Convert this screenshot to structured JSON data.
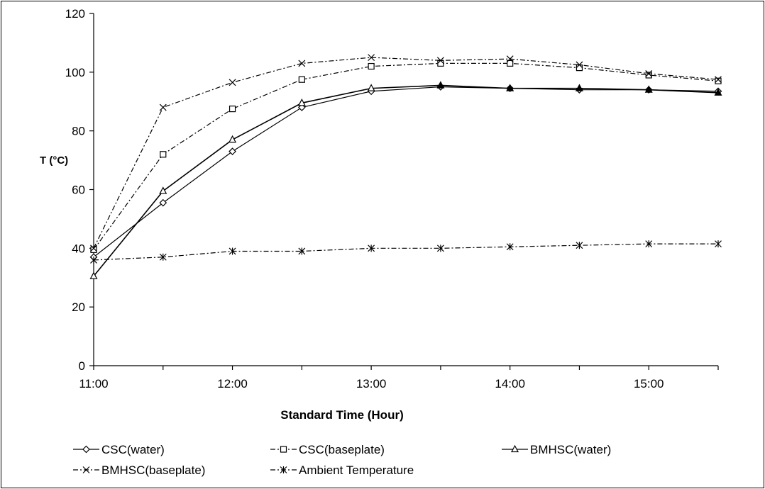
{
  "chart_data": {
    "type": "line",
    "xlabel": "Standard Time (Hour)",
    "ylabel": "T (°C)",
    "ylim": [
      0,
      120
    ],
    "yticks": [
      0,
      20,
      40,
      60,
      80,
      100,
      120
    ],
    "xlim": [
      "11:00",
      "15:30"
    ],
    "xtick_labels": [
      "11:00",
      "12:00",
      "13:00",
      "14:00",
      "15:00"
    ],
    "x": [
      "11:00",
      "11:30",
      "12:00",
      "12:30",
      "13:00",
      "13:30",
      "14:00",
      "14:30",
      "15:00",
      "15:30"
    ],
    "grid": false,
    "legend_position": "bottom",
    "series": [
      {
        "name": "CSC(water)",
        "marker": "diamond",
        "dash": "solid",
        "color": "#000000",
        "values": [
          37,
          55.5,
          73,
          88,
          93.5,
          95,
          94.5,
          94,
          94,
          93.5
        ]
      },
      {
        "name": "CSC(baseplate)",
        "marker": "square",
        "dash": "dashdot",
        "color": "#000000",
        "values": [
          39.5,
          72,
          87.5,
          97.5,
          102,
          103,
          103,
          101.5,
          99,
          97
        ]
      },
      {
        "name": "BMHSC(water)",
        "marker": "triangle",
        "dash": "solid",
        "color": "#000000",
        "values": [
          30.5,
          59.5,
          77,
          89.5,
          94.5,
          95.5,
          94.5,
          94.5,
          94,
          93
        ]
      },
      {
        "name": "BMHSC(baseplate)",
        "marker": "x",
        "dash": "dashdot",
        "color": "#000000",
        "values": [
          40,
          88,
          96.5,
          103,
          105,
          104,
          104.5,
          102.5,
          99.5,
          97.5
        ]
      },
      {
        "name": "Ambient Temperature",
        "marker": "star",
        "dash": "dashdot",
        "color": "#000000",
        "values": [
          36,
          37,
          39,
          39,
          40,
          40,
          40.5,
          41,
          41.5,
          41.5
        ]
      }
    ]
  }
}
